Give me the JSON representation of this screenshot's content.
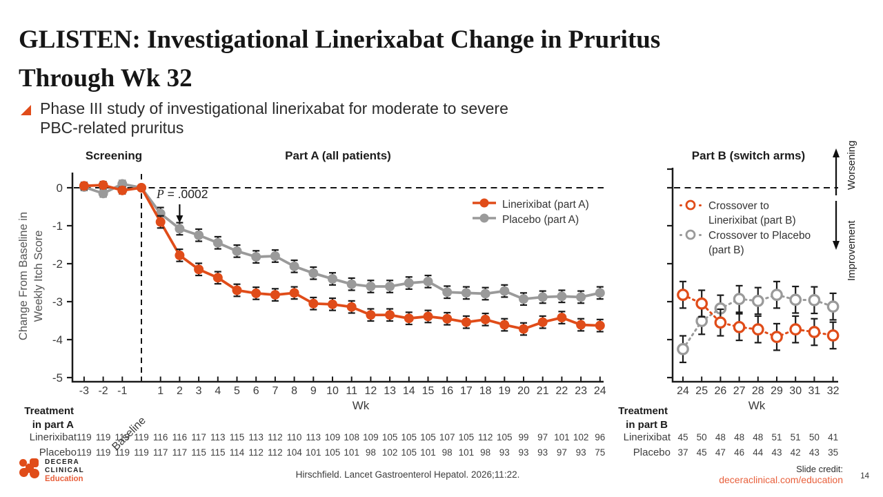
{
  "colors": {
    "accent": "#E04C19",
    "accent_light": "#E8603C",
    "gray": "#9A9A9A",
    "ink": "#1a1a1a"
  },
  "header": {
    "title_line1": "GLISTEN: Investigational Linerixabat Change in Pruritus",
    "title_line2": "Through Wk 32",
    "bullet_line1": "Phase III study of investigational linerixabat for moderate to severe",
    "bullet_line2": "PBC-related pruritus"
  },
  "direction_labels": {
    "up": "Worsening",
    "down": "Improvement"
  },
  "chart_data": [
    {
      "type": "line",
      "title": "Part A (all patients)",
      "region_label": "Screening",
      "xlabel": "Wk",
      "ylabel": "Change From Baseline in Weekly Itch Score",
      "ylim": [
        -5,
        0.5
      ],
      "yticks": [
        0,
        -1,
        -2,
        -3,
        -4,
        -5
      ],
      "ytick_labels": [
        "0",
        "-1",
        "-2",
        "-3",
        "-4",
        "-5"
      ],
      "x": [
        -3,
        -2,
        -1,
        0,
        1,
        2,
        3,
        4,
        5,
        6,
        7,
        8,
        9,
        10,
        11,
        12,
        13,
        14,
        15,
        16,
        17,
        18,
        19,
        20,
        21,
        22,
        23,
        24
      ],
      "x_tick_labels": [
        "-3",
        "-2",
        "-1",
        "Baseline",
        "1",
        "2",
        "3",
        "4",
        "5",
        "6",
        "7",
        "8",
        "9",
        "10",
        "11",
        "12",
        "13",
        "14",
        "15",
        "16",
        "17",
        "18",
        "19",
        "20",
        "21",
        "22",
        "23",
        "24"
      ],
      "zero_reference_dashed": true,
      "baseline_dashed_at_x": 0,
      "error_bar": 0.16,
      "error_bar_screening": 0.09,
      "annotation": {
        "prefix": "P",
        "suffix": " = .0002",
        "arrow_at_x": 2
      },
      "series": [
        {
          "name": "Placebo (part A)",
          "color": "#9A9A9A",
          "marker": "filled-circle",
          "line": "solid",
          "values": [
            0.02,
            -0.15,
            0.1,
            0.0,
            -0.68,
            -1.08,
            -1.25,
            -1.45,
            -1.67,
            -1.82,
            -1.8,
            -2.07,
            -2.25,
            -2.4,
            -2.54,
            -2.6,
            -2.6,
            -2.51,
            -2.47,
            -2.75,
            -2.77,
            -2.79,
            -2.72,
            -2.93,
            -2.88,
            -2.86,
            -2.88,
            -2.77
          ]
        },
        {
          "name": "Linerixibat (part A)",
          "color": "#E04C19",
          "marker": "filled-circle",
          "line": "solid",
          "values": [
            0.05,
            0.07,
            -0.07,
            0.0,
            -0.9,
            -1.78,
            -2.15,
            -2.37,
            -2.7,
            -2.78,
            -2.82,
            -2.77,
            -3.05,
            -3.07,
            -3.14,
            -3.35,
            -3.35,
            -3.44,
            -3.39,
            -3.45,
            -3.54,
            -3.47,
            -3.61,
            -3.72,
            -3.54,
            -3.42,
            -3.61,
            -3.63
          ]
        }
      ],
      "legend_order": [
        1,
        0
      ]
    },
    {
      "type": "line",
      "title": "Part B (switch arms)",
      "xlabel": "Wk",
      "ylim": [
        -5,
        0.5
      ],
      "yticks": [
        0,
        -1,
        -2,
        -3,
        -4,
        -5
      ],
      "x": [
        24,
        25,
        26,
        27,
        28,
        29,
        30,
        31,
        32
      ],
      "x_tick_labels": [
        "24",
        "25",
        "26",
        "27",
        "28",
        "29",
        "30",
        "31",
        "32"
      ],
      "zero_reference_dashed": true,
      "error_bar": 0.35,
      "series": [
        {
          "name": "Crossover to Placebo (part B)",
          "color": "#9A9A9A",
          "marker": "open-circle",
          "line": "dotted",
          "values": [
            -4.25,
            -3.51,
            -3.18,
            -2.93,
            -2.98,
            -2.82,
            -2.95,
            -2.96,
            -3.13
          ]
        },
        {
          "name": "Crossover to Linerixibat (part B)",
          "color": "#E04C19",
          "marker": "open-circle",
          "line": "dotted",
          "values": [
            -2.82,
            -3.05,
            -3.55,
            -3.67,
            -3.73,
            -3.93,
            -3.73,
            -3.8,
            -3.89
          ]
        }
      ],
      "legend_order": [
        1,
        0
      ]
    }
  ],
  "tables": {
    "part_a": {
      "title_line1": "Treatment",
      "title_line2": "in part A",
      "rows": [
        {
          "label": "Linerixibat",
          "values": [
            119,
            119,
            119,
            119,
            116,
            116,
            117,
            113,
            115,
            113,
            112,
            110,
            113,
            109,
            108,
            109,
            105,
            105,
            105,
            107,
            105,
            112,
            105,
            99,
            97,
            101,
            102,
            96
          ]
        },
        {
          "label": "Placebo",
          "values": [
            119,
            119,
            119,
            119,
            117,
            117,
            115,
            115,
            114,
            112,
            112,
            104,
            101,
            105,
            101,
            98,
            102,
            105,
            101,
            98,
            101,
            98,
            93,
            93,
            93,
            97,
            93,
            75
          ]
        }
      ]
    },
    "part_b": {
      "title_line1": "Treatment",
      "title_line2": "in part B",
      "rows": [
        {
          "label": "Linerixibat",
          "values": [
            45,
            50,
            48,
            48,
            48,
            51,
            51,
            50,
            41
          ]
        },
        {
          "label": "Placebo",
          "values": [
            37,
            45,
            47,
            46,
            44,
            43,
            42,
            43,
            35
          ]
        }
      ]
    }
  },
  "footer": {
    "citation": "Hirschfield. Lancet Gastroenterol Hepatol. 2026;11:22.",
    "credit_label": "Slide credit:",
    "credit_link": "deceraclinical.com/education",
    "page": "14"
  },
  "logo": {
    "line1": "DECERA",
    "line2": "CLINICAL",
    "line3": "Education"
  }
}
